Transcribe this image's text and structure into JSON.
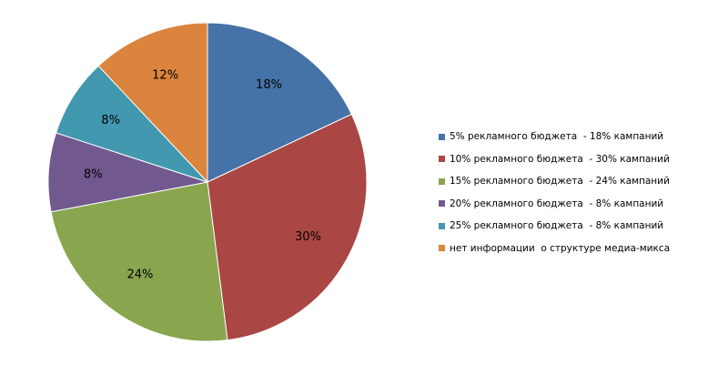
{
  "chart_data": {
    "type": "pie",
    "title": "",
    "slices": [
      {
        "label": "5% рекламного бюджета  - 18% кампаний",
        "value": 18,
        "value_label": "18%",
        "color": "#4572A7"
      },
      {
        "label": "10% рекламного бюджета  - 30% кампаний",
        "value": 30,
        "value_label": "30%",
        "color": "#AA4643"
      },
      {
        "label": "15% рекламного бюджета  - 24% кампаний",
        "value": 24,
        "value_label": "24%",
        "color": "#89A54E"
      },
      {
        "label": "20% рекламного бюджета  - 8% кампаний",
        "value": 8,
        "value_label": "8%",
        "color": "#71588F"
      },
      {
        "label": "25% рекламного бюджета  - 8% кампаний",
        "value": 8,
        "value_label": "8%",
        "color": "#4198AF"
      },
      {
        "label": "нет информации  о структуре медиа-микса",
        "value": 12,
        "value_label": "12%",
        "color": "#DB843D"
      }
    ],
    "legend_position": "right",
    "start_angle": "top",
    "direction": "clockwise"
  }
}
